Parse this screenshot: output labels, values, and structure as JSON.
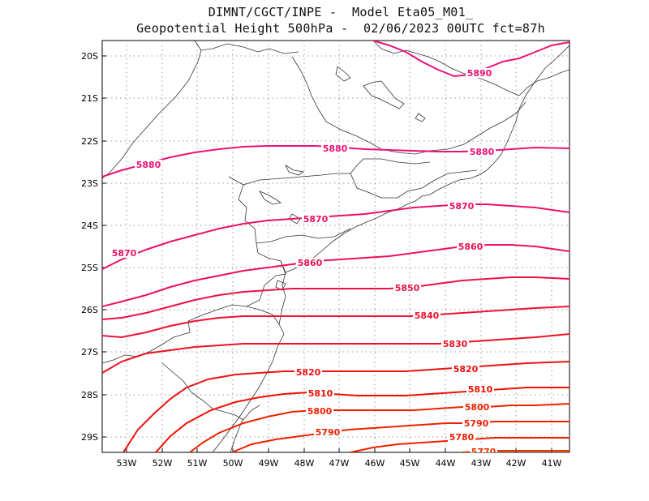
{
  "header": {
    "line1": "DIMNT/CGCT/INPE -  Model Eta05_M01_",
    "line2": "Geopotential Height 500hPa -  02/06/2023 00UTC fct=87h"
  },
  "axes": {
    "lat_labels": [
      "20S",
      "21S",
      "22S",
      "23S",
      "24S",
      "25S",
      "26S",
      "27S",
      "28S",
      "29S"
    ],
    "lon_labels": [
      "53W",
      "52W",
      "51W",
      "50W",
      "49W",
      "48W",
      "47W",
      "46W",
      "45W",
      "44W",
      "43W",
      "42W",
      "41W"
    ]
  },
  "colors": {
    "5890": "#ee1177",
    "5880": "#ee1177",
    "5870": "#ee1166",
    "5860": "#ee1155",
    "5850": "#ee1144",
    "5840": "#ee1133",
    "5830": "#ee1122",
    "5820": "#ee1111",
    "5810": "#ee1100",
    "5800": "#ee2200",
    "5790": "#ee2200",
    "5780": "#ee2200",
    "5770": "#ee3300"
  },
  "contour_labels": [
    {
      "value": "5890"
    },
    {
      "value": "5880"
    },
    {
      "value": "5880"
    },
    {
      "value": "5880"
    },
    {
      "value": "5870"
    },
    {
      "value": "5870"
    },
    {
      "value": "5870"
    },
    {
      "value": "5860"
    },
    {
      "value": "5860"
    },
    {
      "value": "5850"
    },
    {
      "value": "5840"
    },
    {
      "value": "5830"
    },
    {
      "value": "5820"
    },
    {
      "value": "5820"
    },
    {
      "value": "5810"
    },
    {
      "value": "5810"
    },
    {
      "value": "5800"
    },
    {
      "value": "5800"
    },
    {
      "value": "5790"
    },
    {
      "value": "5790"
    },
    {
      "value": "5780"
    },
    {
      "value": "5770"
    }
  ]
}
